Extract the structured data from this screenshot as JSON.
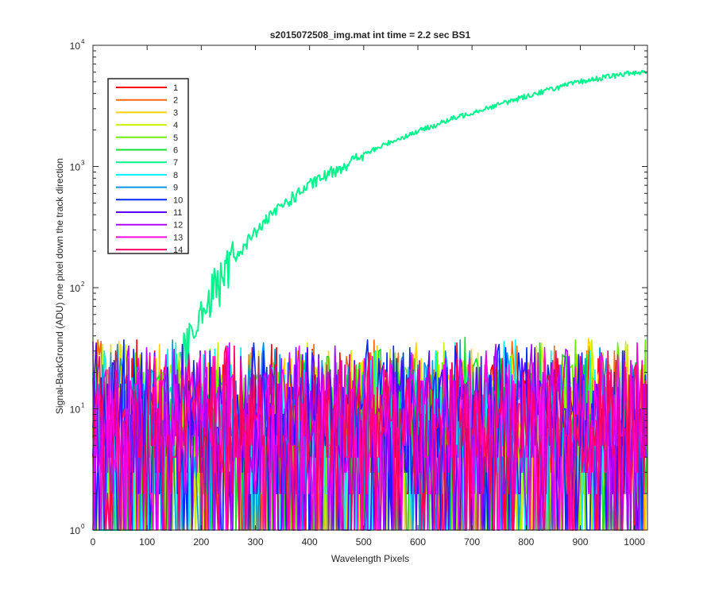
{
  "chart_data": {
    "type": "line",
    "title": "s2015072508_img.mat int time = 2.2 sec   BS1",
    "xlabel": "Wavelength Pixels",
    "ylabel": "Signal-BackGround (ADU) one pixel down the track direction",
    "xlim": [
      0,
      1024
    ],
    "ylim": [
      1,
      10000
    ],
    "yscale": "log",
    "x_ticks": [
      0,
      100,
      200,
      300,
      400,
      500,
      600,
      700,
      800,
      900,
      1000
    ],
    "x_tick_labels": [
      "0",
      "100",
      "200",
      "300",
      "400",
      "500",
      "600",
      "700",
      "800",
      "900",
      "1000"
    ],
    "y_ticks": [
      1,
      10,
      100,
      1000,
      10000
    ],
    "y_tick_labels": [
      "10",
      "10",
      "10",
      "10",
      "10"
    ],
    "y_tick_exponents": [
      "0",
      "1",
      "2",
      "3",
      "4"
    ],
    "grid": false,
    "legend_position": "top-left",
    "series": [
      {
        "name": "1",
        "color": "#ff0000",
        "kind": "noise"
      },
      {
        "name": "2",
        "color": "#ff6a00",
        "kind": "noise"
      },
      {
        "name": "3",
        "color": "#ffd200",
        "kind": "noise"
      },
      {
        "name": "4",
        "color": "#c8f000",
        "kind": "noise"
      },
      {
        "name": "5",
        "color": "#6cf000",
        "kind": "noise"
      },
      {
        "name": "6",
        "color": "#12e028",
        "kind": "noise"
      },
      {
        "name": "7",
        "color": "#00f58c",
        "kind": "signal",
        "x": [
          0,
          100,
          120,
          140,
          160,
          180,
          200,
          220,
          250,
          300,
          350,
          400,
          450,
          500,
          550,
          600,
          650,
          700,
          750,
          800,
          850,
          900,
          950,
          1000,
          1024
        ],
        "values": [
          1,
          1,
          8,
          15,
          25,
          40,
          60,
          95,
          150,
          290,
          480,
          700,
          950,
          1250,
          1600,
          1950,
          2350,
          2800,
          3250,
          3800,
          4400,
          5000,
          5500,
          5950,
          6100
        ]
      },
      {
        "name": "8",
        "color": "#00f0ff",
        "kind": "noise"
      },
      {
        "name": "9",
        "color": "#0096e6",
        "kind": "noise"
      },
      {
        "name": "10",
        "color": "#0028ff",
        "kind": "noise"
      },
      {
        "name": "11",
        "color": "#5a00ff",
        "kind": "noise"
      },
      {
        "name": "12",
        "color": "#b400ff",
        "kind": "noise"
      },
      {
        "name": "13",
        "color": "#ff00dc",
        "kind": "noise"
      },
      {
        "name": "14",
        "color": "#ff0064",
        "kind": "noise"
      }
    ]
  }
}
